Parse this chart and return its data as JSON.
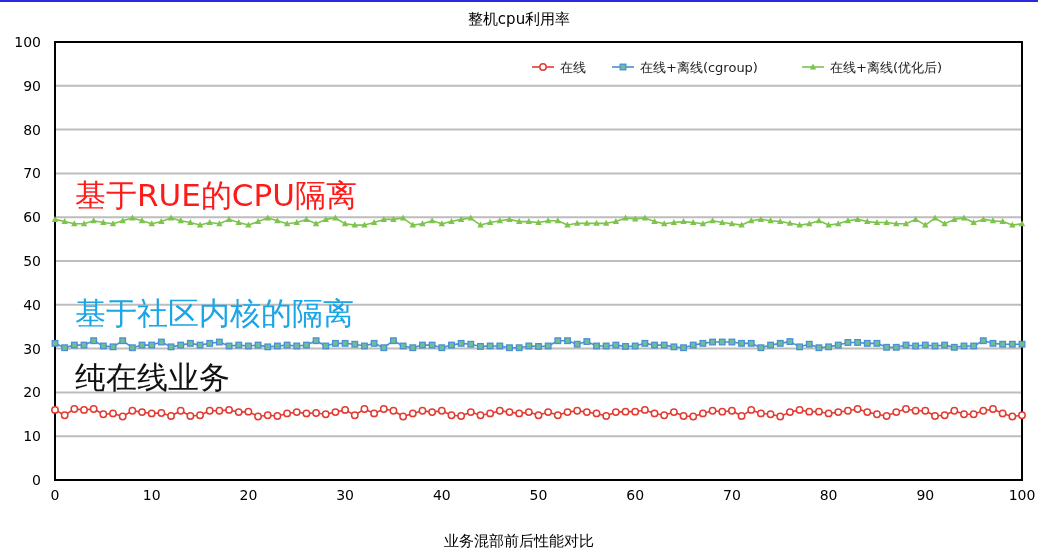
{
  "chart_data": {
    "type": "line",
    "title": "整机cpu利用率",
    "xlabel": "业务混部前后性能对比",
    "x": [
      0,
      1,
      2,
      3,
      4,
      5,
      6,
      7,
      8,
      9,
      10,
      11,
      12,
      13,
      14,
      15,
      16,
      17,
      18,
      19,
      20,
      21,
      22,
      23,
      24,
      25,
      26,
      27,
      28,
      29,
      30,
      31,
      32,
      33,
      34,
      35,
      36,
      37,
      38,
      39,
      40,
      41,
      42,
      43,
      44,
      45,
      46,
      47,
      48,
      49,
      50,
      51,
      52,
      53,
      54,
      55,
      56,
      57,
      58,
      59,
      60,
      61,
      62,
      63,
      64,
      65,
      66,
      67,
      68,
      69,
      70,
      71,
      72,
      73,
      74,
      75,
      76,
      77,
      78,
      79,
      80,
      81,
      82,
      83,
      84,
      85,
      86,
      87,
      88,
      89,
      90,
      91,
      92,
      93,
      94,
      95,
      96,
      97,
      98,
      99,
      100
    ],
    "series": [
      {
        "name": "在线",
        "color": "#e23b32",
        "marker": "circle",
        "values": [
          16,
          14.8,
          16.2,
          16,
          16.2,
          15,
          15.2,
          14.5,
          15.8,
          15.5,
          15.2,
          15.3,
          14.6,
          15.8,
          14.6,
          14.8,
          15.8,
          15.8,
          16,
          15.5,
          15.6,
          14.5,
          14.8,
          14.6,
          15.2,
          15.5,
          15.2,
          15.3,
          15,
          15.5,
          16,
          14.8,
          16.2,
          15.2,
          16.2,
          15.8,
          14.5,
          15.2,
          15.8,
          15.5,
          15.8,
          14.8,
          14.6,
          15.5,
          14.8,
          15.2,
          15.8,
          15.5,
          15.2,
          15.5,
          14.8,
          15.5,
          14.8,
          15.5,
          15.8,
          15.5,
          15.2,
          14.6,
          15.5,
          15.6,
          15.6,
          16,
          15.2,
          14.8,
          15.5,
          14.6,
          14.5,
          15.2,
          15.8,
          15.6,
          15.8,
          14.6,
          16,
          15.2,
          15,
          14.5,
          15.5,
          16,
          15.6,
          15.6,
          15.2,
          15.5,
          15.8,
          16.2,
          15.5,
          15,
          14.6,
          15.5,
          16.2,
          15.8,
          15.8,
          14.6,
          14.8,
          15.8,
          15,
          15,
          15.8,
          16.2,
          15.2,
          14.5,
          14.8
        ]
      },
      {
        "name": "在线+离线(cgroup)",
        "color": "#4a8fd8",
        "marker": "square",
        "values": [
          31.2,
          30.2,
          30.8,
          30.8,
          31.8,
          30.6,
          30.4,
          31.8,
          30.2,
          30.8,
          30.8,
          31.5,
          30.4,
          30.8,
          31.2,
          30.8,
          31.2,
          31.5,
          30.6,
          30.8,
          30.6,
          30.8,
          30.4,
          30.6,
          30.8,
          30.6,
          30.8,
          31.8,
          30.6,
          31.2,
          31.2,
          31,
          30.6,
          31.2,
          30.2,
          31.8,
          30.6,
          30.2,
          30.8,
          30.8,
          30.2,
          30.8,
          31.2,
          31,
          30.5,
          30.6,
          30.6,
          30.2,
          30.2,
          30.6,
          30.5,
          30.6,
          31.8,
          31.8,
          31,
          31.6,
          30.6,
          30.6,
          30.8,
          30.5,
          30.6,
          31.2,
          30.8,
          30.8,
          30.4,
          30.2,
          30.8,
          31.2,
          31.5,
          31.5,
          31.5,
          31.2,
          31.2,
          30.2,
          30.8,
          31.2,
          31.6,
          30.4,
          31,
          30.2,
          30.4,
          30.8,
          31.4,
          31.4,
          31.2,
          31.2,
          30.3,
          30.3,
          30.8,
          30.6,
          30.8,
          30.6,
          30.8,
          30.3,
          30.6,
          30.6,
          31.8,
          31.2,
          31,
          31,
          31
        ]
      },
      {
        "name": "在线+离线(优化后)",
        "color": "#7cc44c",
        "marker": "triangle",
        "values": [
          59.5,
          59,
          58.5,
          58.5,
          59.2,
          58.8,
          58.5,
          59.2,
          59.8,
          59.2,
          58.5,
          59,
          59.8,
          59.2,
          58.8,
          58.2,
          58.8,
          58.5,
          59.5,
          58.8,
          58.2,
          59,
          59.8,
          59.2,
          58.5,
          58.8,
          59.5,
          58.5,
          59.5,
          59.8,
          58.5,
          58.2,
          58.2,
          58.8,
          59.5,
          59.5,
          59.8,
          58.2,
          58.5,
          59.2,
          58.5,
          59,
          59.5,
          59.8,
          58.2,
          58.8,
          59.2,
          59.5,
          59,
          59,
          58.8,
          59.2,
          59.2,
          58.2,
          58.6,
          58.6,
          58.6,
          58.6,
          59,
          59.8,
          59.6,
          59.8,
          59,
          58.5,
          58.8,
          59,
          58.8,
          58.5,
          59.2,
          58.8,
          58.5,
          58.2,
          59.2,
          59.5,
          59.2,
          59,
          58.6,
          58.2,
          58.5,
          59.2,
          58.2,
          58.5,
          59.2,
          59.5,
          59,
          58.8,
          58.8,
          58.5,
          58.5,
          59.5,
          58.2,
          59.8,
          58.5,
          59.5,
          59.8,
          58.8,
          59.5,
          59.2,
          59,
          58.2,
          58.5
        ]
      }
    ],
    "xlim": [
      0,
      100
    ],
    "xticks": [
      0,
      10,
      20,
      30,
      40,
      50,
      60,
      70,
      80,
      90,
      100
    ],
    "ylim": [
      0,
      100
    ],
    "yticks": [
      0,
      10,
      20,
      30,
      40,
      50,
      60,
      70,
      80,
      90,
      100
    ],
    "grid": "y",
    "legend": "top right",
    "annotations": [
      "基于RUE的CPU隔离",
      "基于社区内核的隔离",
      "纯在线业务"
    ]
  }
}
